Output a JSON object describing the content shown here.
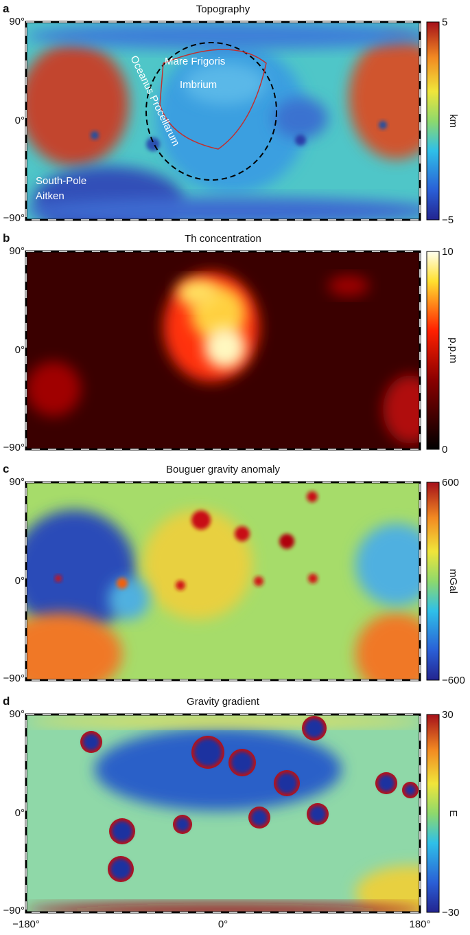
{
  "panels": [
    {
      "letter": "a",
      "title": "Topography",
      "colorbar": {
        "top": "5",
        "label": "km",
        "bottom": "−5"
      },
      "annotations": [
        "Mare Frigoris",
        "Imbrium",
        "Oceanus Procellarum",
        "South-Pole",
        "Aitken"
      ]
    },
    {
      "letter": "b",
      "title": "Th concentration",
      "colorbar": {
        "top": "10",
        "label": "p.p.m",
        "bottom": "0"
      }
    },
    {
      "letter": "c",
      "title": "Bouguer gravity anomaly",
      "colorbar": {
        "top": "600",
        "label": "mGal",
        "bottom": "−600"
      }
    },
    {
      "letter": "d",
      "title": "Gravity gradient",
      "colorbar": {
        "top": "30",
        "label": "E",
        "bottom": "−30"
      }
    }
  ],
  "yticks": [
    "90°",
    "0°",
    "−90°"
  ],
  "xticks": [
    "−180°",
    "0°",
    "180°"
  ]
}
